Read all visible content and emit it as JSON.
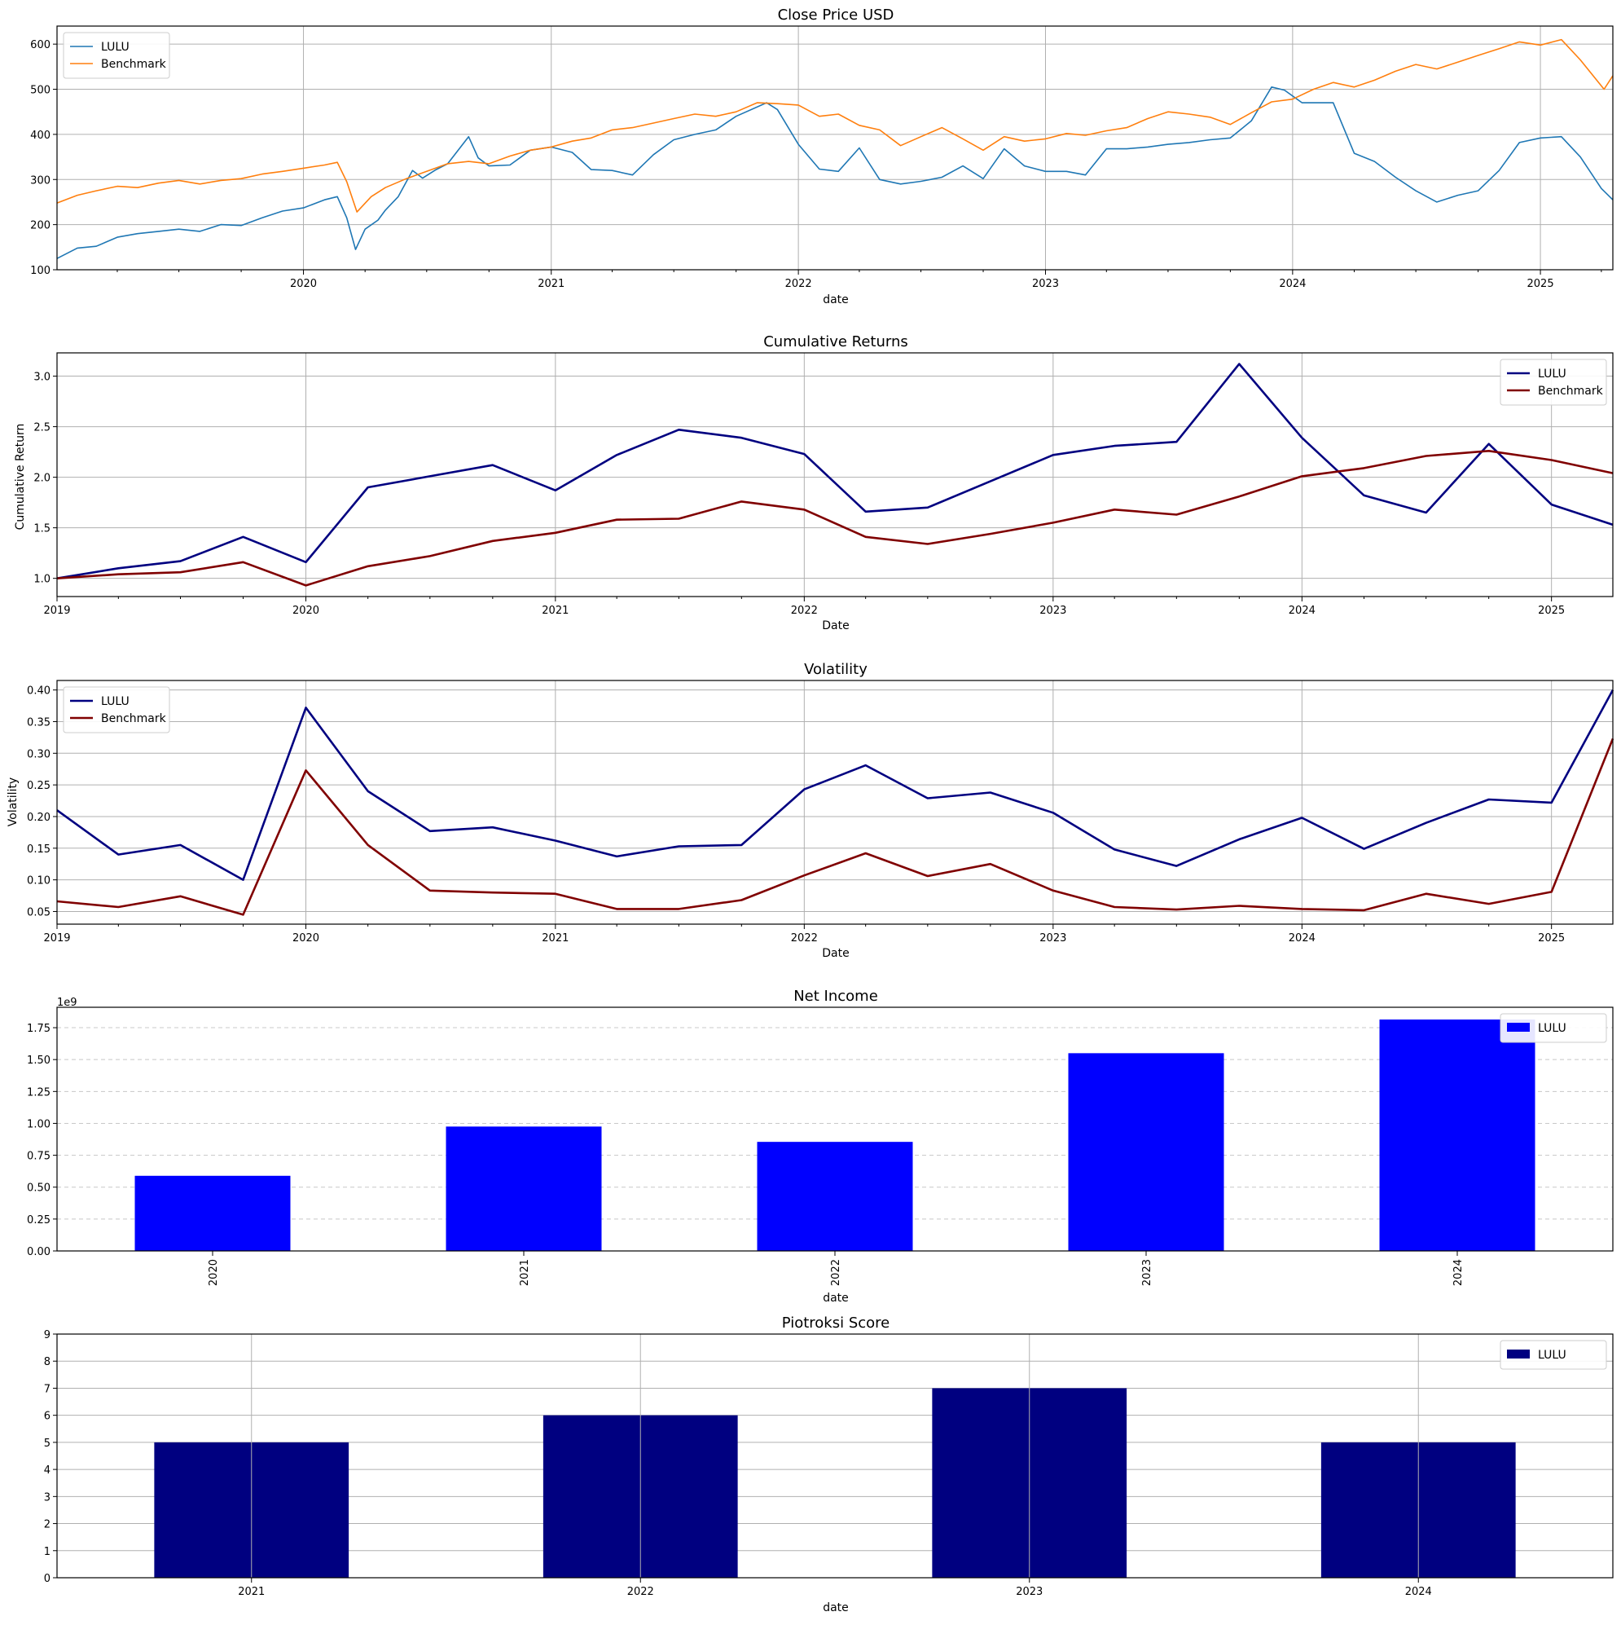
{
  "figure": {
    "panels": [
      {
        "title": "Close Price USD",
        "xlabel": "date",
        "ylabel": ""
      },
      {
        "title": "Cumulative Returns",
        "xlabel": "Date",
        "ylabel": "Cumulative Return"
      },
      {
        "title": "Volatility",
        "xlabel": "Date",
        "ylabel": "Volatility"
      },
      {
        "title": "Net Income",
        "xlabel": "date",
        "ylabel": "",
        "offset_label": "1e9"
      },
      {
        "title": "Piotroksi Score",
        "xlabel": "date",
        "ylabel": ""
      }
    ]
  },
  "chart_data": [
    {
      "type": "line",
      "title": "Close Price USD",
      "xlabel": "date",
      "ylabel": "",
      "xlim": [
        "2019-01-02",
        "2025-04-18"
      ],
      "x_ticks": [
        "2020",
        "2021",
        "2022",
        "2023",
        "2024",
        "2025"
      ],
      "ylim": [
        100,
        640
      ],
      "y_ticks": [
        100,
        200,
        300,
        400,
        500,
        600
      ],
      "grid": true,
      "legend": "top-left",
      "colors": {
        "LULU": "#1f77b4",
        "Benchmark": "#ff7f0e"
      },
      "series": [
        {
          "name": "LULU",
          "points": [
            [
              "2019-01-02",
              125
            ],
            [
              "2019-02-01",
              148
            ],
            [
              "2019-03-01",
              152
            ],
            [
              "2019-04-01",
              172
            ],
            [
              "2019-05-01",
              180
            ],
            [
              "2019-06-01",
              185
            ],
            [
              "2019-07-01",
              190
            ],
            [
              "2019-08-01",
              185
            ],
            [
              "2019-09-01",
              200
            ],
            [
              "2019-10-01",
              198
            ],
            [
              "2019-11-01",
              215
            ],
            [
              "2019-12-01",
              230
            ],
            [
              "2020-01-01",
              237
            ],
            [
              "2020-02-01",
              255
            ],
            [
              "2020-02-20",
              262
            ],
            [
              "2020-03-05",
              215
            ],
            [
              "2020-03-18",
              145
            ],
            [
              "2020-04-01",
              190
            ],
            [
              "2020-04-20",
              210
            ],
            [
              "2020-05-01",
              232
            ],
            [
              "2020-05-20",
              262
            ],
            [
              "2020-06-10",
              320
            ],
            [
              "2020-06-25",
              303
            ],
            [
              "2020-07-15",
              322
            ],
            [
              "2020-08-01",
              335
            ],
            [
              "2020-09-01",
              395
            ],
            [
              "2020-09-15",
              348
            ],
            [
              "2020-10-01",
              330
            ],
            [
              "2020-11-01",
              332
            ],
            [
              "2020-12-01",
              365
            ],
            [
              "2021-01-01",
              372
            ],
            [
              "2021-02-01",
              360
            ],
            [
              "2021-03-01",
              322
            ],
            [
              "2021-04-01",
              320
            ],
            [
              "2021-05-01",
              310
            ],
            [
              "2021-06-01",
              355
            ],
            [
              "2021-07-01",
              388
            ],
            [
              "2021-08-01",
              400
            ],
            [
              "2021-09-01",
              410
            ],
            [
              "2021-10-01",
              440
            ],
            [
              "2021-11-15",
              470
            ],
            [
              "2021-12-01",
              455
            ],
            [
              "2022-01-01",
              378
            ],
            [
              "2022-02-01",
              323
            ],
            [
              "2022-03-01",
              318
            ],
            [
              "2022-04-01",
              370
            ],
            [
              "2022-05-01",
              300
            ],
            [
              "2022-06-01",
              290
            ],
            [
              "2022-07-01",
              296
            ],
            [
              "2022-08-01",
              305
            ],
            [
              "2022-09-01",
              330
            ],
            [
              "2022-10-01",
              302
            ],
            [
              "2022-11-01",
              368
            ],
            [
              "2022-12-01",
              330
            ],
            [
              "2023-01-01",
              318
            ],
            [
              "2023-02-01",
              318
            ],
            [
              "2023-03-01",
              310
            ],
            [
              "2023-04-01",
              368
            ],
            [
              "2023-05-01",
              368
            ],
            [
              "2023-06-01",
              372
            ],
            [
              "2023-07-01",
              378
            ],
            [
              "2023-08-01",
              382
            ],
            [
              "2023-09-01",
              388
            ],
            [
              "2023-10-01",
              392
            ],
            [
              "2023-11-01",
              430
            ],
            [
              "2023-12-01",
              505
            ],
            [
              "2023-12-20",
              498
            ],
            [
              "2024-01-15",
              470
            ],
            [
              "2024-02-01",
              470
            ],
            [
              "2024-03-01",
              470
            ],
            [
              "2024-04-01",
              358
            ],
            [
              "2024-05-01",
              340
            ],
            [
              "2024-06-01",
              305
            ],
            [
              "2024-07-01",
              275
            ],
            [
              "2024-08-01",
              250
            ],
            [
              "2024-09-01",
              265
            ],
            [
              "2024-10-01",
              275
            ],
            [
              "2024-11-01",
              320
            ],
            [
              "2024-12-01",
              382
            ],
            [
              "2025-01-01",
              392
            ],
            [
              "2025-02-01",
              395
            ],
            [
              "2025-03-01",
              350
            ],
            [
              "2025-04-01",
              280
            ],
            [
              "2025-04-18",
              255
            ]
          ]
        },
        {
          "name": "Benchmark",
          "points": [
            [
              "2019-01-02",
              248
            ],
            [
              "2019-02-01",
              265
            ],
            [
              "2019-03-01",
              275
            ],
            [
              "2019-04-01",
              285
            ],
            [
              "2019-05-01",
              282
            ],
            [
              "2019-06-01",
              292
            ],
            [
              "2019-07-01",
              298
            ],
            [
              "2019-08-01",
              290
            ],
            [
              "2019-09-01",
              298
            ],
            [
              "2019-10-01",
              302
            ],
            [
              "2019-11-01",
              312
            ],
            [
              "2019-12-01",
              318
            ],
            [
              "2020-01-01",
              325
            ],
            [
              "2020-02-01",
              332
            ],
            [
              "2020-02-20",
              338
            ],
            [
              "2020-03-05",
              295
            ],
            [
              "2020-03-20",
              228
            ],
            [
              "2020-04-10",
              262
            ],
            [
              "2020-05-01",
              282
            ],
            [
              "2020-06-01",
              302
            ],
            [
              "2020-07-01",
              318
            ],
            [
              "2020-08-01",
              335
            ],
            [
              "2020-09-01",
              340
            ],
            [
              "2020-10-01",
              335
            ],
            [
              "2020-11-01",
              352
            ],
            [
              "2020-12-01",
              365
            ],
            [
              "2021-01-01",
              372
            ],
            [
              "2021-02-01",
              385
            ],
            [
              "2021-03-01",
              392
            ],
            [
              "2021-04-01",
              410
            ],
            [
              "2021-05-01",
              415
            ],
            [
              "2021-06-01",
              425
            ],
            [
              "2021-07-01",
              435
            ],
            [
              "2021-08-01",
              445
            ],
            [
              "2021-09-01",
              440
            ],
            [
              "2021-10-01",
              450
            ],
            [
              "2021-11-01",
              470
            ],
            [
              "2021-12-01",
              468
            ],
            [
              "2022-01-01",
              465
            ],
            [
              "2022-02-01",
              440
            ],
            [
              "2022-03-01",
              445
            ],
            [
              "2022-04-01",
              420
            ],
            [
              "2022-05-01",
              410
            ],
            [
              "2022-06-01",
              375
            ],
            [
              "2022-07-01",
              395
            ],
            [
              "2022-08-01",
              415
            ],
            [
              "2022-09-01",
              390
            ],
            [
              "2022-10-01",
              365
            ],
            [
              "2022-11-01",
              395
            ],
            [
              "2022-12-01",
              385
            ],
            [
              "2023-01-01",
              390
            ],
            [
              "2023-02-01",
              402
            ],
            [
              "2023-03-01",
              398
            ],
            [
              "2023-04-01",
              408
            ],
            [
              "2023-05-01",
              415
            ],
            [
              "2023-06-01",
              435
            ],
            [
              "2023-07-01",
              450
            ],
            [
              "2023-08-01",
              445
            ],
            [
              "2023-09-01",
              438
            ],
            [
              "2023-10-01",
              422
            ],
            [
              "2023-11-01",
              448
            ],
            [
              "2023-12-01",
              472
            ],
            [
              "2024-01-01",
              478
            ],
            [
              "2024-02-01",
              500
            ],
            [
              "2024-03-01",
              515
            ],
            [
              "2024-04-01",
              505
            ],
            [
              "2024-05-01",
              520
            ],
            [
              "2024-06-01",
              540
            ],
            [
              "2024-07-01",
              555
            ],
            [
              "2024-08-01",
              545
            ],
            [
              "2024-09-01",
              560
            ],
            [
              "2024-10-01",
              575
            ],
            [
              "2024-11-01",
              590
            ],
            [
              "2024-12-01",
              605
            ],
            [
              "2025-01-01",
              598
            ],
            [
              "2025-02-01",
              610
            ],
            [
              "2025-03-01",
              565
            ],
            [
              "2025-04-05",
              500
            ],
            [
              "2025-04-18",
              530
            ]
          ]
        }
      ]
    },
    {
      "type": "line",
      "title": "Cumulative Returns",
      "xlabel": "Date",
      "ylabel": "Cumulative Return",
      "xlim": [
        "2019-01-01",
        "2025-04-01"
      ],
      "x_ticks": [
        "2019",
        "2020",
        "2021",
        "2022",
        "2023",
        "2024",
        "2025"
      ],
      "ylim": [
        0.82,
        3.23
      ],
      "y_ticks": [
        "1.0",
        "1.5",
        "2.0",
        "2.5",
        "3.0"
      ],
      "grid": true,
      "legend": "top-right",
      "colors": {
        "LULU": "#000080",
        "Benchmark": "#800000"
      },
      "x": [
        "2019-01-01",
        "2019-04-01",
        "2019-07-01",
        "2019-10-01",
        "2020-01-01",
        "2020-04-01",
        "2020-07-01",
        "2020-10-01",
        "2021-01-01",
        "2021-04-01",
        "2021-07-01",
        "2021-10-01",
        "2022-01-01",
        "2022-04-01",
        "2022-07-01",
        "2022-10-01",
        "2023-01-01",
        "2023-04-01",
        "2023-07-01",
        "2023-10-01",
        "2024-01-01",
        "2024-04-01",
        "2024-07-01",
        "2024-10-01",
        "2025-01-01",
        "2025-04-01"
      ],
      "series": [
        {
          "name": "LULU",
          "values": [
            1.0,
            1.1,
            1.17,
            1.41,
            1.16,
            1.9,
            2.01,
            2.12,
            1.87,
            2.22,
            2.47,
            2.39,
            2.23,
            1.66,
            1.7,
            1.96,
            2.22,
            2.31,
            2.35,
            3.12,
            2.39,
            1.82,
            1.65,
            2.33,
            1.73,
            1.53
          ]
        },
        {
          "name": "Benchmark",
          "values": [
            1.0,
            1.04,
            1.06,
            1.16,
            0.93,
            1.12,
            1.22,
            1.37,
            1.45,
            1.58,
            1.59,
            1.76,
            1.68,
            1.41,
            1.34,
            1.44,
            1.55,
            1.68,
            1.63,
            1.81,
            2.01,
            2.09,
            2.21,
            2.26,
            2.17,
            2.04
          ]
        }
      ]
    },
    {
      "type": "line",
      "title": "Volatility",
      "xlabel": "Date",
      "ylabel": "Volatility",
      "xlim": [
        "2019-01-01",
        "2025-04-01"
      ],
      "x_ticks": [
        "2019",
        "2020",
        "2021",
        "2022",
        "2023",
        "2024",
        "2025"
      ],
      "ylim": [
        0.03,
        0.415
      ],
      "y_ticks": [
        "0.05",
        "0.10",
        "0.15",
        "0.20",
        "0.25",
        "0.30",
        "0.35",
        "0.40"
      ],
      "grid": true,
      "legend": "top-left",
      "colors": {
        "LULU": "#000080",
        "Benchmark": "#800000"
      },
      "x": [
        "2019-01-01",
        "2019-04-01",
        "2019-07-01",
        "2019-10-01",
        "2020-01-01",
        "2020-04-01",
        "2020-07-01",
        "2020-10-01",
        "2021-01-01",
        "2021-04-01",
        "2021-07-01",
        "2021-10-01",
        "2022-01-01",
        "2022-04-01",
        "2022-07-01",
        "2022-10-01",
        "2023-01-01",
        "2023-04-01",
        "2023-07-01",
        "2023-10-01",
        "2024-01-01",
        "2024-04-01",
        "2024-07-01",
        "2024-10-01",
        "2025-01-01",
        "2025-04-01"
      ],
      "series": [
        {
          "name": "LULU",
          "values": [
            0.21,
            0.14,
            0.155,
            0.1,
            0.372,
            0.24,
            0.177,
            0.183,
            0.162,
            0.137,
            0.153,
            0.155,
            0.243,
            0.281,
            0.229,
            0.238,
            0.206,
            0.148,
            0.122,
            0.164,
            0.198,
            0.149,
            0.19,
            0.227,
            0.222,
            0.4
          ]
        },
        {
          "name": "Benchmark",
          "values": [
            0.066,
            0.057,
            0.074,
            0.045,
            0.273,
            0.155,
            0.083,
            0.08,
            0.078,
            0.054,
            0.054,
            0.068,
            0.107,
            0.142,
            0.106,
            0.125,
            0.083,
            0.057,
            0.053,
            0.059,
            0.054,
            0.052,
            0.078,
            0.062,
            0.081,
            0.323
          ]
        }
      ]
    },
    {
      "type": "bar",
      "title": "Net Income",
      "xlabel": "date",
      "ylabel": "",
      "offset_label": "1e9",
      "categories": [
        "2020",
        "2021",
        "2022",
        "2023",
        "2024"
      ],
      "series": [
        {
          "name": "LULU",
          "values": [
            0.589,
            0.975,
            0.855,
            1.55,
            1.814
          ]
        }
      ],
      "ylim": [
        0,
        1.91
      ],
      "y_ticks": [
        "0.00",
        "0.25",
        "0.50",
        "0.75",
        "1.00",
        "1.25",
        "1.50",
        "1.75"
      ],
      "grid": "y-dashed",
      "legend": "top-right",
      "colors": {
        "LULU": "#0000ff"
      }
    },
    {
      "type": "bar",
      "title": "Piotroksi Score",
      "xlabel": "date",
      "ylabel": "",
      "categories": [
        "2021",
        "2022",
        "2023",
        "2024"
      ],
      "series": [
        {
          "name": "LULU",
          "values": [
            5,
            6,
            7,
            5
          ]
        }
      ],
      "ylim": [
        0,
        9
      ],
      "y_ticks": [
        "0",
        "1",
        "2",
        "3",
        "4",
        "5",
        "6",
        "7",
        "8",
        "9"
      ],
      "grid": true,
      "legend": "top-right",
      "colors": {
        "LULU": "#000080"
      }
    }
  ]
}
